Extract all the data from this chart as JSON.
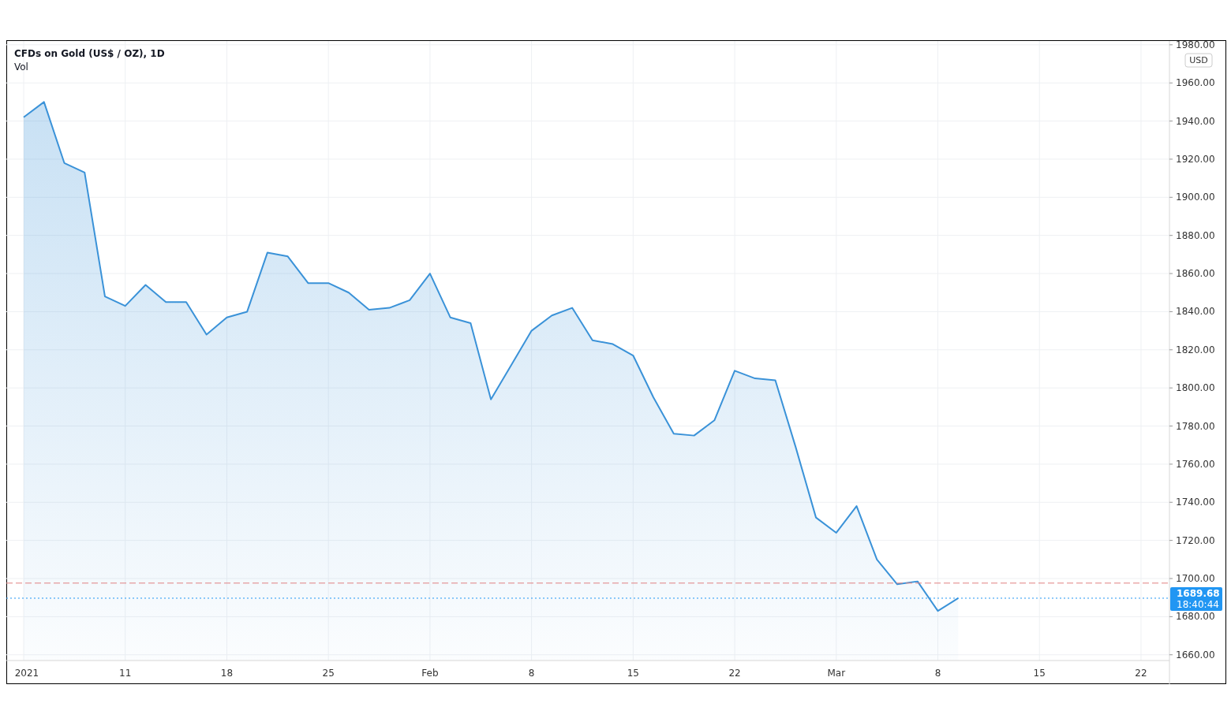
{
  "chart_data": {
    "type": "area",
    "title": "CFDs on Gold (US$ / OZ), 1D",
    "annotations": [
      "Vol",
      "USD",
      "18:40:44"
    ],
    "categories": [
      "2021",
      null,
      null,
      null,
      null,
      "11",
      null,
      null,
      null,
      null,
      "18",
      null,
      null,
      null,
      null,
      "25",
      null,
      null,
      null,
      null,
      "Feb",
      null,
      null,
      null,
      null,
      "8",
      null,
      null,
      null,
      null,
      "15",
      null,
      null,
      null,
      null,
      "22",
      null,
      null,
      null,
      null,
      "Mar",
      null,
      null,
      null,
      null,
      "8",
      null,
      null,
      null,
      null,
      "15",
      null,
      null,
      null,
      null,
      "22",
      null
    ],
    "series": [
      {
        "color": "#3a92d8",
        "values": [
          1942,
          1950,
          1918,
          1913,
          1848,
          1843,
          1854,
          1845,
          1845,
          1828,
          1837,
          1840,
          1871,
          1869,
          1855,
          1855,
          1850,
          1841,
          1842,
          1846,
          1860,
          1837,
          1834,
          1794,
          1812,
          1830,
          1838,
          1842,
          1825,
          1823,
          1817,
          1795,
          1776,
          1775,
          1783,
          1809,
          1805,
          1804,
          1769,
          1732,
          1724,
          1738,
          1710,
          1697,
          1698.5,
          1683,
          1689.68,
          null,
          null,
          null,
          null,
          null,
          null,
          null,
          null,
          null,
          null
        ]
      }
    ],
    "ylim": [
      1657,
      1982
    ],
    "yticks": [
      {
        "value": 1660,
        "label": "1660.00"
      },
      {
        "value": 1680,
        "label": "1680.00"
      },
      {
        "value": 1700,
        "label": "1700.00"
      },
      {
        "value": 1720,
        "label": "1720.00"
      },
      {
        "value": 1740,
        "label": "1740.00"
      },
      {
        "value": 1760,
        "label": "1760.00"
      },
      {
        "value": 1780,
        "label": "1780.00"
      },
      {
        "value": 1800,
        "label": "1800.00"
      },
      {
        "value": 1820,
        "label": "1820.00"
      },
      {
        "value": 1840,
        "label": "1840.00"
      },
      {
        "value": 1860,
        "label": "1860.00"
      },
      {
        "value": 1880,
        "label": "1880.00"
      },
      {
        "value": 1900,
        "label": "1900.00"
      },
      {
        "value": 1920,
        "label": "1920.00"
      },
      {
        "value": 1940,
        "label": "1940.00"
      },
      {
        "value": 1960,
        "label": "1960.00"
      },
      {
        "value": 1980,
        "label": "1980.00"
      }
    ],
    "ref_lines": [
      {
        "axis": "y",
        "value": 1697.6,
        "color": "#e08080",
        "line_style": "dashed"
      },
      {
        "axis": "y",
        "value": 1689.68,
        "label": "1689.68",
        "color": "#2196f3",
        "line_style": "dotted"
      }
    ],
    "grid": true,
    "marker": "none",
    "line_style": "solid"
  }
}
